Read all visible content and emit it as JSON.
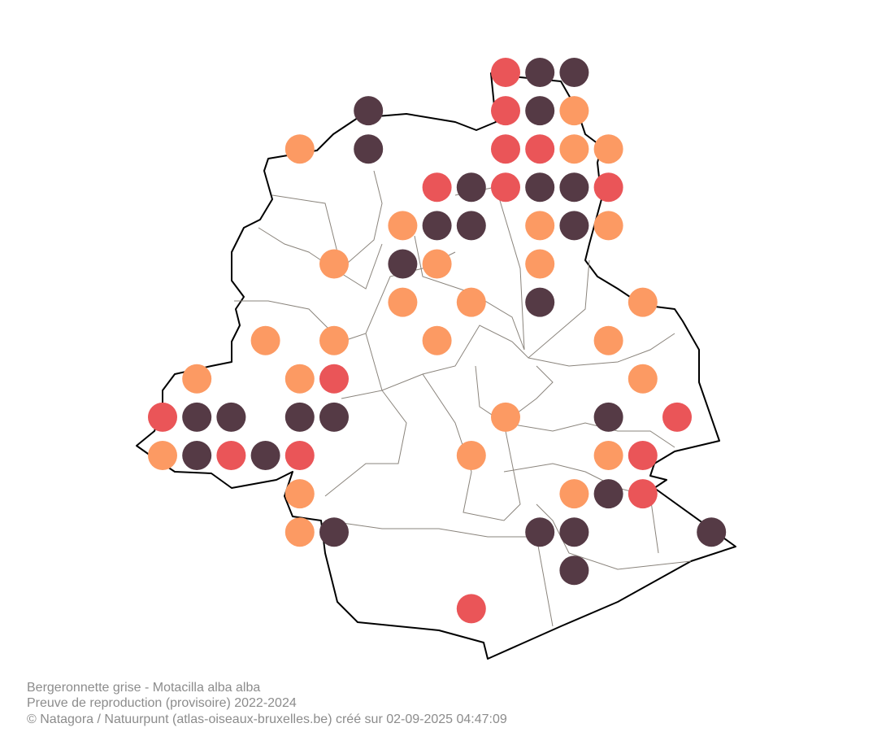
{
  "caption": {
    "species": "Bergeronnette grise - Motacilla alba alba",
    "subtitle": "Preuve de reproduction (provisoire) 2022-2024",
    "credit": "© Natagora / Natuurpunt (atlas-oiseaux-bruxelles.be) créé sur 02-09-2025 04:47:09"
  }
}
